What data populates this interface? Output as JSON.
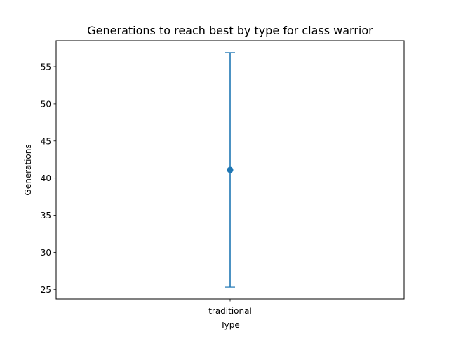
{
  "chart_data": {
    "type": "scatter",
    "title": "Generations to reach best by type for class warrior",
    "xlabel": "Type",
    "ylabel": "Generations",
    "categories": [
      "traditional"
    ],
    "series": [
      {
        "name": "traditional",
        "values": [
          41.1
        ],
        "error_low": [
          25.3
        ],
        "error_high": [
          56.9
        ]
      }
    ],
    "ylim": [
      23.7,
      58.5
    ],
    "yticks": [
      25,
      30,
      35,
      40,
      45,
      50,
      55
    ],
    "grid": false,
    "colors": {
      "series": "#1f77b4",
      "axis": "#000000",
      "background": "#ffffff"
    }
  }
}
